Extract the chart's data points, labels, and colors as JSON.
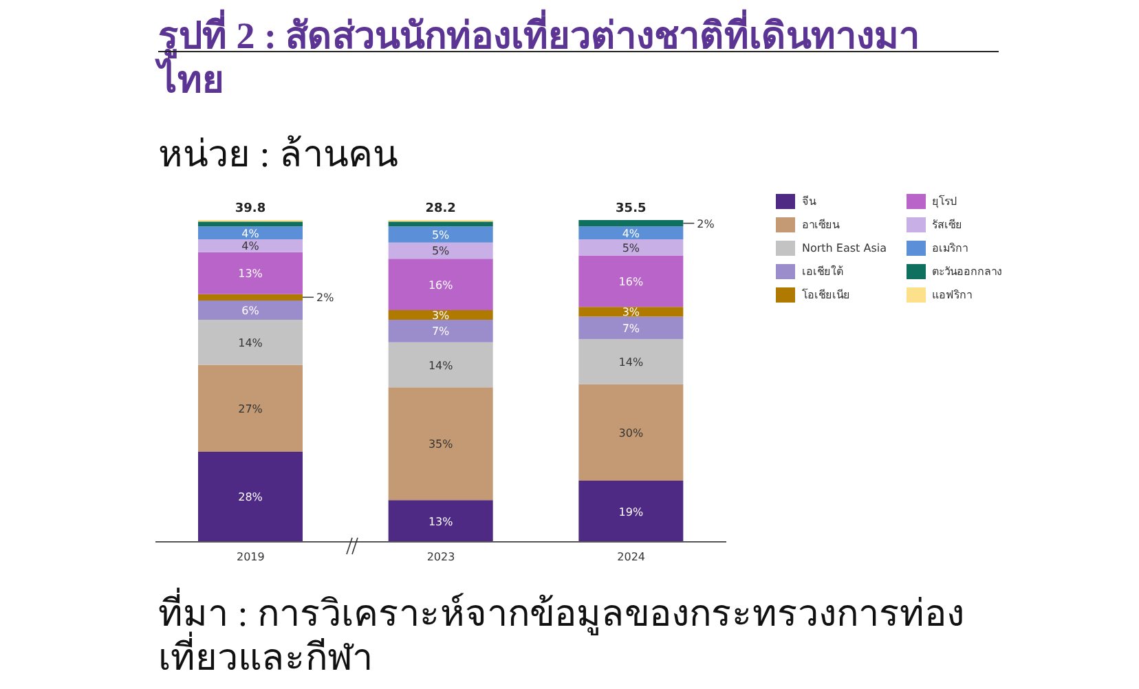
{
  "chart_data": {
    "type": "bar",
    "stacked": true,
    "title": "รูปที่ 2 : สัดส่วนนักท่องเที่ยวต่างชาติที่เดินทางมาไทย",
    "subtitle": "หน่วย : ล้านคน",
    "annotations": [
      "ที่มา : การวิเคราะห์จากข้อมูลของกระทรวงการท่องเที่ยวและกีฬา",
      {
        "text": "39.8",
        "x": "2019",
        "y": 100
      },
      {
        "text": "28.2",
        "x": "2023",
        "y": 100
      },
      {
        "text": "35.5",
        "x": "2024",
        "y": 100
      }
    ],
    "categories": [
      "2019",
      "2023",
      "2024"
    ],
    "legend": "right",
    "series": [
      {
        "name": "จีน",
        "color": "#4e2a84",
        "values": [
          28,
          13,
          19
        ],
        "value_labels": [
          "28%",
          "13%",
          "19%"
        ]
      },
      {
        "name": "อาเซียน",
        "color": "#c49a74",
        "values": [
          27,
          35,
          30
        ],
        "value_labels": [
          "27%",
          "35%",
          "30%"
        ]
      },
      {
        "name": "North East Asia",
        "color": "#c3c3c3",
        "values": [
          14,
          14,
          14
        ],
        "value_labels": [
          "14%",
          "14%",
          "14%"
        ]
      },
      {
        "name": "เอเชียใต้",
        "color": "#9b8ccc",
        "values": [
          6,
          7,
          7
        ],
        "value_labels": [
          "6%",
          "7%",
          "7%"
        ]
      },
      {
        "name": "โอเชียเนีย",
        "color": "#b07a00",
        "values": [
          2,
          3,
          3
        ],
        "value_labels": [
          "2%",
          "3%",
          "3%"
        ]
      },
      {
        "name": "ยุโรป",
        "color": "#b964c8",
        "values": [
          13,
          16,
          16
        ],
        "value_labels": [
          "13%",
          "16%",
          "16%"
        ]
      },
      {
        "name": "รัสเซีย",
        "color": "#c8b0e6",
        "values": [
          4,
          5,
          5
        ],
        "value_labels": [
          "4%",
          "5%",
          "5%"
        ]
      },
      {
        "name": "อเมริกา",
        "color": "#5b8fd8",
        "values": [
          4,
          5,
          4
        ],
        "value_labels": [
          "4%",
          "5%",
          "4%"
        ]
      },
      {
        "name": "ตะวันออกกลาง",
        "color": "#0f7060",
        "values": [
          1.5,
          1.5,
          2
        ],
        "value_labels": [
          null,
          null,
          "2%"
        ]
      },
      {
        "name": "แอฟริกา",
        "color": "#fde08a",
        "values": [
          0.5,
          0.5,
          null
        ],
        "value_labels": [
          null,
          null,
          null
        ]
      }
    ]
  }
}
